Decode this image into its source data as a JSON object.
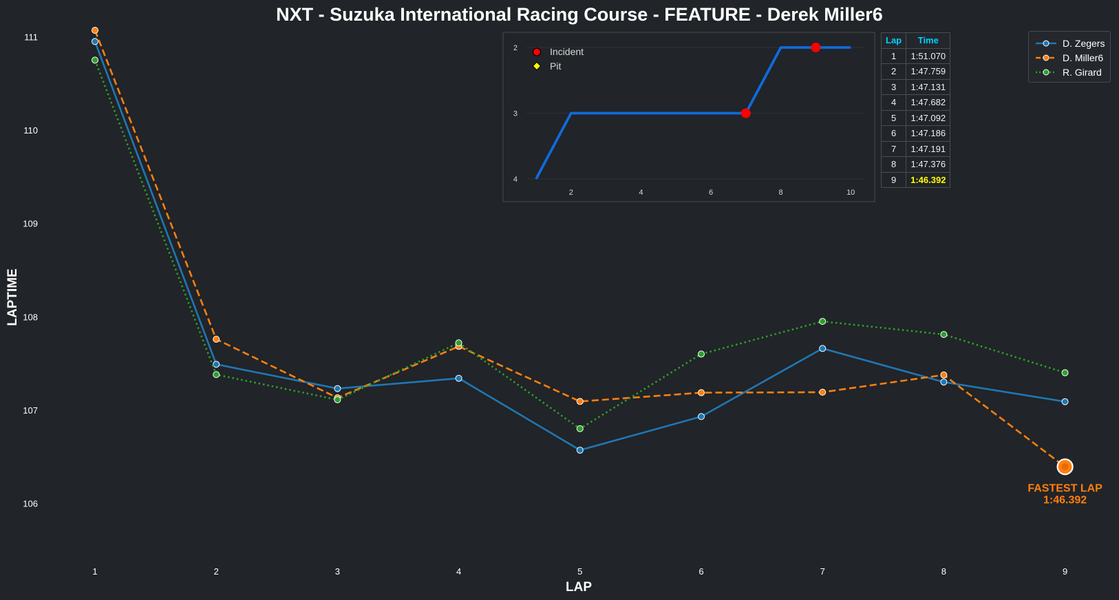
{
  "chart_data": [
    {
      "type": "line",
      "title": "NXT - Suzuka International Racing Course - FEATURE - Derek Miller6",
      "xlabel": "LAP",
      "ylabel": "LAPTIME",
      "x": [
        1,
        2,
        3,
        4,
        5,
        6,
        7,
        8,
        9
      ],
      "xticks": [
        "1",
        "2",
        "3",
        "4",
        "5",
        "6",
        "7",
        "8",
        "9"
      ],
      "yticks": [
        "106",
        "107",
        "108",
        "109",
        "110",
        "111"
      ],
      "ylim": [
        105.35,
        111.1
      ],
      "legend": "top-right",
      "grid": false,
      "series": [
        {
          "name": "D. Zegers",
          "color": "#1f77b4",
          "style": "solid",
          "values": [
            110.95,
            107.49,
            107.23,
            107.34,
            106.57,
            106.93,
            107.66,
            107.3,
            107.09
          ]
        },
        {
          "name": "D. Miller6",
          "color": "#ff7f0e",
          "style": "dashed",
          "values": [
            111.07,
            107.759,
            107.131,
            107.682,
            107.092,
            107.186,
            107.191,
            107.376,
            106.392
          ]
        },
        {
          "name": "R. Girard",
          "color": "#2ca02c",
          "style": "dotted",
          "values": [
            110.75,
            107.38,
            107.11,
            107.72,
            106.8,
            107.6,
            107.95,
            107.81,
            107.4
          ]
        }
      ],
      "annotation": {
        "line1": "FASTEST LAP",
        "line2": "1:46.392",
        "lap": 9,
        "value": 106.392
      }
    },
    {
      "type": "line",
      "title": "",
      "x": [
        1,
        2,
        3,
        4,
        5,
        6,
        7,
        8,
        9,
        10
      ],
      "values": [
        4,
        3,
        3,
        3,
        3,
        3,
        3,
        2,
        2,
        2
      ],
      "color": "#0f6bdc",
      "xticks": [
        "2",
        "4",
        "6",
        "8",
        "10"
      ],
      "yticks": [
        "2",
        "3",
        "4"
      ],
      "xlim": [
        0.1,
        10.5
      ],
      "ylim": [
        4.1,
        1.9
      ],
      "legend": [
        "Incident",
        "Pit"
      ],
      "incidents": [
        {
          "x": 7,
          "y": 3
        },
        {
          "x": 9,
          "y": 2
        }
      ]
    }
  ],
  "table": {
    "headers": [
      "Lap",
      "Time"
    ],
    "rows": [
      [
        "1",
        "1:51.070"
      ],
      [
        "2",
        "1:47.759"
      ],
      [
        "3",
        "1:47.131"
      ],
      [
        "4",
        "1:47.682"
      ],
      [
        "5",
        "1:47.092"
      ],
      [
        "6",
        "1:47.186"
      ],
      [
        "7",
        "1:47.191"
      ],
      [
        "8",
        "1:47.376"
      ],
      [
        "9",
        "1:46.392"
      ]
    ],
    "best_index": 8
  }
}
